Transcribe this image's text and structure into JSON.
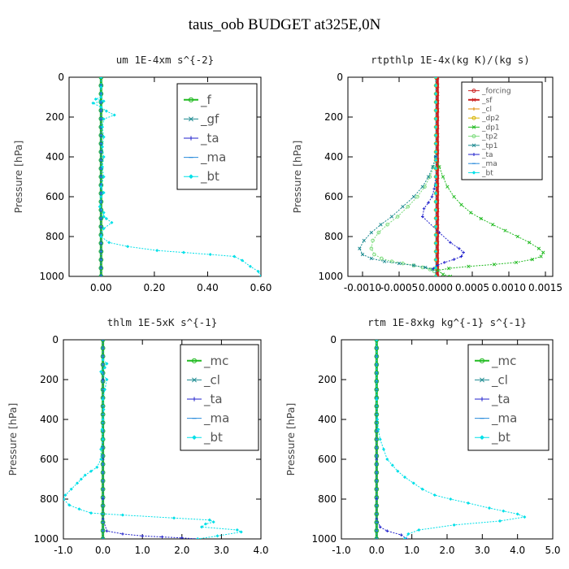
{
  "title": "taus_oob  BUDGET at325E,0N",
  "colors": {
    "green": "#22bb22",
    "lightgreen": "#7ddc7d",
    "teal": "#1c8a90",
    "blue": "#2222cc",
    "sky": "#2a8bdb",
    "cyan": "#00e0e8",
    "red": "#cc2222",
    "orange": "#e08a00",
    "gold": "#d8b400"
  },
  "chart_data": [
    {
      "type": "line",
      "title": "um   1E-4xm s^{-2}",
      "ylabel": "Pressure [hPa]",
      "xlim": [
        -0.12,
        0.6
      ],
      "ylim": [
        1000,
        0
      ],
      "xticks": [
        "0.00",
        "0.20",
        "0.40",
        "0.60"
      ],
      "xtick_values": [
        0,
        0.2,
        0.4,
        0.6
      ],
      "yticks": [
        "0",
        "200",
        "400",
        "600",
        "800",
        "1000"
      ],
      "ytick_values": [
        0,
        200,
        400,
        600,
        800,
        1000
      ],
      "legend_position": "top-right",
      "legend_size": "large",
      "series": [
        {
          "name": "_f",
          "color": "green",
          "marker": "circle",
          "width": 3,
          "x": [
            0,
            0
          ],
          "y": [
            0,
            1000
          ]
        },
        {
          "name": "_gf",
          "color": "teal",
          "marker": "cross",
          "width": 1,
          "x": [
            0,
            0
          ],
          "y": [
            0,
            1000
          ]
        },
        {
          "name": "_ta",
          "color": "blue",
          "marker": "plus",
          "width": 1,
          "x": [
            0,
            0
          ],
          "y": [
            0,
            1000
          ]
        },
        {
          "name": "_ma",
          "color": "sky",
          "marker": "dash",
          "width": 1,
          "x": [
            0,
            0
          ],
          "y": [
            0,
            1000
          ]
        },
        {
          "name": "_bt",
          "color": "cyan",
          "marker": "diamond",
          "width": 1,
          "x": [
            0,
            0,
            0,
            -0.02,
            0.01,
            -0.03,
            0,
            0.02,
            0.05,
            0.01,
            0.005,
            0.01,
            0.005,
            0.01,
            0.005,
            0.01,
            0,
            0.01,
            0,
            -0.005,
            0.01,
            0.01,
            0.02,
            0.04,
            0.01,
            0,
            0.03,
            0.1,
            0.21,
            0.31,
            0.41,
            0.5,
            0.53,
            0.56,
            0.59,
            0.6
          ],
          "y": [
            0,
            50,
            100,
            110,
            120,
            130,
            150,
            170,
            190,
            210,
            250,
            300,
            350,
            400,
            450,
            500,
            550,
            580,
            600,
            650,
            680,
            700,
            710,
            730,
            760,
            800,
            830,
            850,
            870,
            880,
            890,
            900,
            920,
            950,
            975,
            1000
          ]
        }
      ]
    },
    {
      "type": "line",
      "title": "rtpthlp   1E-4x(kg K)/(kg s)",
      "ylabel": "Pressure [hPa]",
      "xlim": [
        -0.0012,
        0.0016
      ],
      "ylim": [
        1000,
        0
      ],
      "xticks": [
        "-0.0010",
        "-0.0005",
        "0.0000",
        "0.0005",
        "0.0010",
        "0.0015"
      ],
      "xtick_values": [
        -0.001,
        -0.0005,
        0,
        0.0005,
        0.001,
        0.0015
      ],
      "yticks": [
        "0",
        "200",
        "400",
        "600",
        "800",
        "1000"
      ],
      "ytick_values": [
        0,
        200,
        400,
        600,
        800,
        1000
      ],
      "legend_position": "top-right",
      "legend_size": "small",
      "series": [
        {
          "name": "_forcing",
          "color": "red",
          "marker": "circle",
          "width": 1,
          "x": [
            2e-05,
            2e-05
          ],
          "y": [
            0,
            1000
          ]
        },
        {
          "name": "_sf",
          "color": "red",
          "marker": "cross",
          "width": 4,
          "x": [
            2e-05,
            2e-05
          ],
          "y": [
            0,
            1000
          ]
        },
        {
          "name": "_cl",
          "color": "orange",
          "marker": "plus",
          "width": 1,
          "x": [
            0,
            0
          ],
          "y": [
            0,
            1000
          ]
        },
        {
          "name": "_dp2",
          "color": "gold",
          "marker": "circle",
          "width": 1,
          "x": [
            0,
            0
          ],
          "y": [
            0,
            1000
          ]
        },
        {
          "name": "_dp1",
          "color": "green",
          "marker": "cross",
          "width": 1,
          "x": [
            0.0,
            5e-05,
            0.0001,
            0.00016,
            0.00025,
            0.00035,
            0.00048,
            0.00062,
            0.00078,
            0.00095,
            0.00112,
            0.00128,
            0.00141,
            0.00147,
            0.00144,
            0.00132,
            0.0011,
            0.0008,
            0.00045,
            0.00018,
            3e-05,
            0.0001,
            0.0002
          ],
          "y": [
            400,
            450,
            500,
            550,
            600,
            640,
            680,
            710,
            740,
            770,
            800,
            830,
            860,
            880,
            900,
            915,
            930,
            940,
            950,
            960,
            970,
            990,
            1000
          ]
        },
        {
          "name": "_tp2",
          "color": "lightgreen",
          "marker": "circle",
          "width": 1,
          "x": [
            0.0,
            -3e-05,
            -8e-05,
            -0.00015,
            -0.00025,
            -0.00038,
            -0.00052,
            -0.00066,
            -0.00078,
            -0.00086,
            -0.00088,
            -0.00084,
            -0.00074,
            -0.0006,
            -0.00045,
            -0.0003,
            -0.00018,
            -8e-05,
            -2e-05
          ],
          "y": [
            400,
            450,
            500,
            550,
            600,
            650,
            700,
            740,
            780,
            820,
            860,
            890,
            910,
            925,
            935,
            945,
            955,
            965,
            975
          ]
        },
        {
          "name": "_tp1",
          "color": "teal",
          "marker": "cross",
          "width": 1,
          "x": [
            0.0,
            -4e-05,
            -0.0001,
            -0.00018,
            -0.0003,
            -0.00045,
            -0.0006,
            -0.00075,
            -0.00088,
            -0.00098,
            -0.00104,
            -0.001,
            -0.00088,
            -0.0007,
            -0.0005,
            -0.0003,
            -0.00014,
            -4e-05
          ],
          "y": [
            400,
            450,
            500,
            550,
            600,
            650,
            700,
            740,
            780,
            820,
            860,
            890,
            910,
            925,
            935,
            945,
            955,
            965
          ]
        },
        {
          "name": "_ta",
          "color": "blue",
          "marker": "plus",
          "width": 1,
          "x": [
            0.0,
            0.0,
            -2e-05,
            -5e-05,
            -0.0001,
            -0.00016,
            -0.00018,
            5e-05,
            0.0002,
            0.00032,
            0.00038,
            0.00035,
            0.00025,
            0.00012,
            2e-05,
            -3e-05
          ],
          "y": [
            400,
            500,
            560,
            600,
            630,
            660,
            700,
            780,
            830,
            860,
            880,
            900,
            915,
            930,
            945,
            960
          ]
        },
        {
          "name": "_ma",
          "color": "sky",
          "marker": "dash",
          "width": 1,
          "x": [
            0,
            0
          ],
          "y": [
            0,
            1000
          ]
        },
        {
          "name": "_bt",
          "color": "cyan",
          "marker": "diamond",
          "width": 1,
          "x": [
            0,
            0
          ],
          "y": [
            0,
            1000
          ]
        }
      ]
    },
    {
      "type": "line",
      "title": "thlm   1E-5xK s^{-1}",
      "ylabel": "Pressure [hPa]",
      "xlim": [
        -1.0,
        4.0
      ],
      "ylim": [
        1000,
        0
      ],
      "xticks": [
        "-1.0",
        "0.0",
        "1.0",
        "2.0",
        "3.0",
        "4.0"
      ],
      "xtick_values": [
        -1,
        0,
        1,
        2,
        3,
        4
      ],
      "yticks": [
        "0",
        "200",
        "400",
        "600",
        "800",
        "1000"
      ],
      "ytick_values": [
        0,
        200,
        400,
        600,
        800,
        1000
      ],
      "legend_position": "top-right",
      "legend_size": "large",
      "series": [
        {
          "name": "_mc",
          "color": "green",
          "marker": "circle",
          "width": 3,
          "x": [
            0,
            0
          ],
          "y": [
            0,
            1000
          ]
        },
        {
          "name": "_cl",
          "color": "teal",
          "marker": "cross",
          "width": 1,
          "x": [
            0,
            0
          ],
          "y": [
            0,
            1000
          ]
        },
        {
          "name": "_ta",
          "color": "blue",
          "marker": "plus",
          "width": 1,
          "x": [
            0,
            0,
            0,
            0,
            0,
            0,
            0.1,
            0.5,
            1.0,
            1.5,
            2.0,
            2.4
          ],
          "y": [
            0,
            200,
            400,
            600,
            800,
            900,
            960,
            975,
            985,
            990,
            995,
            1000
          ]
        },
        {
          "name": "_ma",
          "color": "sky",
          "marker": "dash",
          "width": 1,
          "x": [
            0,
            0
          ],
          "y": [
            0,
            1000
          ]
        },
        {
          "name": "_bt",
          "color": "cyan",
          "marker": "diamond",
          "width": 1,
          "x": [
            0,
            0.1,
            0.05,
            -0.05,
            0.1,
            0.05,
            0,
            0.02,
            0,
            -0.02,
            0,
            -0.05,
            -0.05,
            -0.15,
            -0.3,
            -0.45,
            -0.55,
            -0.65,
            -0.8,
            -0.95,
            -1.0,
            -0.85,
            -0.6,
            -0.3,
            0.5,
            1.8,
            2.7,
            2.8,
            2.6,
            2.5,
            3.4,
            3.5,
            2.9,
            2.4
          ],
          "y": [
            100,
            120,
            140,
            160,
            200,
            250,
            300,
            350,
            400,
            450,
            500,
            550,
            600,
            640,
            660,
            680,
            700,
            720,
            750,
            780,
            800,
            830,
            850,
            870,
            880,
            895,
            905,
            915,
            925,
            940,
            955,
            965,
            985,
            1000
          ]
        }
      ]
    },
    {
      "type": "line",
      "title": "rtm   1E-8xkg kg^{-1} s^{-1}",
      "ylabel": "Pressure [hPa]",
      "xlim": [
        -1.0,
        5.0
      ],
      "ylim": [
        1000,
        0
      ],
      "xticks": [
        "-1.0",
        "0.0",
        "1.0",
        "2.0",
        "3.0",
        "4.0",
        "5.0"
      ],
      "xtick_values": [
        -1,
        0,
        1,
        2,
        3,
        4,
        5
      ],
      "yticks": [
        "0",
        "200",
        "400",
        "600",
        "800",
        "1000"
      ],
      "ytick_values": [
        0,
        200,
        400,
        600,
        800,
        1000
      ],
      "legend_position": "top-right",
      "legend_size": "large",
      "series": [
        {
          "name": "_mc",
          "color": "green",
          "marker": "circle",
          "width": 3,
          "x": [
            0,
            0
          ],
          "y": [
            0,
            1000
          ]
        },
        {
          "name": "_cl",
          "color": "teal",
          "marker": "cross",
          "width": 1,
          "x": [
            0,
            0
          ],
          "y": [
            0,
            1000
          ]
        },
        {
          "name": "_ta",
          "color": "blue",
          "marker": "plus",
          "width": 1,
          "x": [
            0,
            0,
            0,
            0,
            0.1,
            0.3,
            0.7,
            0.85
          ],
          "y": [
            0,
            600,
            800,
            900,
            940,
            960,
            980,
            1000
          ]
        },
        {
          "name": "_ma",
          "color": "sky",
          "marker": "dash",
          "width": 1,
          "x": [
            0,
            0
          ],
          "y": [
            0,
            1000
          ]
        },
        {
          "name": "_bt",
          "color": "cyan",
          "marker": "diamond",
          "width": 1,
          "x": [
            0,
            0,
            0.02,
            0.05,
            0.1,
            0.2,
            0.3,
            0.45,
            0.6,
            0.8,
            1.05,
            1.3,
            1.65,
            2.1,
            2.6,
            3.2,
            3.6,
            4.0,
            4.2,
            3.5,
            2.2,
            1.2,
            0.9,
            0.8
          ],
          "y": [
            0,
            300,
            400,
            450,
            500,
            550,
            600,
            630,
            660,
            690,
            720,
            750,
            780,
            800,
            820,
            845,
            860,
            875,
            890,
            910,
            930,
            955,
            975,
            1000
          ]
        }
      ]
    }
  ]
}
